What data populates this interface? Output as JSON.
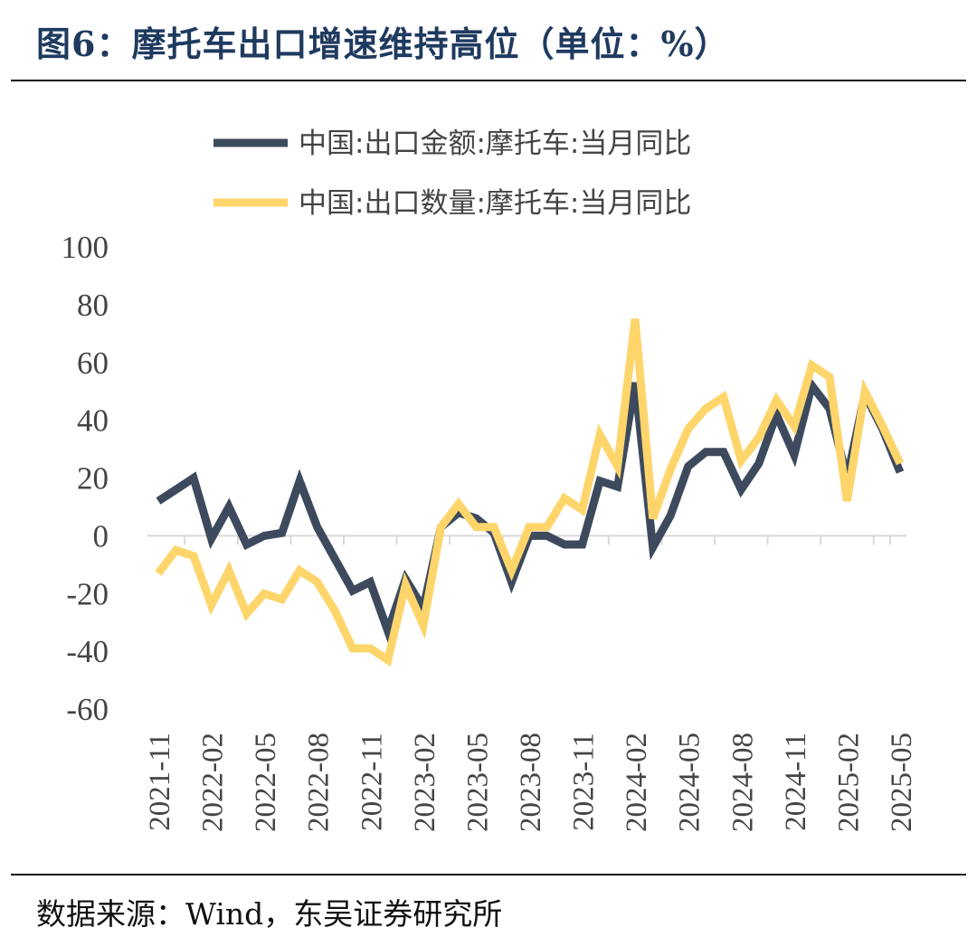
{
  "header": {
    "title": "图6：摩托车出口增速维持高位（单位：%）"
  },
  "footer": {
    "source": "数据来源：Wind，东吴证券研究所"
  },
  "chart_data": {
    "type": "line",
    "title": "摩托车出口增速维持高位（单位：%）",
    "ylim": [
      -60,
      100
    ],
    "yticks": [
      100,
      80,
      60,
      40,
      20,
      0,
      -20,
      -40,
      -60
    ],
    "xtick_labels": [
      "2021-11",
      "2022-02",
      "2022-05",
      "2022-08",
      "2022-11",
      "2023-02",
      "2023-05",
      "2023-08",
      "2023-11",
      "2024-02",
      "2024-05",
      "2024-08",
      "2024-11",
      "2025-02",
      "2025-05"
    ],
    "x": [
      "2021-11",
      "2021-12",
      "2022-01",
      "2022-02",
      "2022-03",
      "2022-04",
      "2022-05",
      "2022-06",
      "2022-07",
      "2022-08",
      "2022-09",
      "2022-10",
      "2022-11",
      "2022-12",
      "2023-01",
      "2023-02",
      "2023-03",
      "2023-04",
      "2023-05",
      "2023-06",
      "2023-07",
      "2023-08",
      "2023-09",
      "2023-10",
      "2023-11",
      "2023-12",
      "2024-01",
      "2024-02",
      "2024-03",
      "2024-04",
      "2024-05",
      "2024-06",
      "2024-07",
      "2024-08",
      "2024-09",
      "2024-10",
      "2024-11",
      "2024-12",
      "2025-01",
      "2025-02",
      "2025-03",
      "2025-04",
      "2025-05"
    ],
    "series": [
      {
        "name": "中国:出口金额:摩托车:当月同比",
        "color": "#3d4a5e",
        "values": [
          12,
          16,
          20,
          -1,
          10,
          -3,
          0,
          1,
          19,
          3,
          -8,
          -19,
          -16,
          -33,
          -15,
          -25,
          3,
          8,
          6,
          1,
          -16,
          0,
          0,
          -3,
          -3,
          19,
          17,
          53,
          -4,
          7,
          24,
          29,
          29,
          16,
          25,
          42,
          28,
          52,
          44,
          20,
          49,
          37,
          22
        ]
      },
      {
        "name": "中国:出口数量:摩托车:当月同比",
        "color": "#fdd56b",
        "values": [
          -13,
          -5,
          -7,
          -24,
          -12,
          -27,
          -20,
          -22,
          -12,
          -16,
          -26,
          -39,
          -39,
          -43,
          -17,
          -31,
          3,
          11,
          3,
          3,
          -12,
          3,
          3,
          13,
          9,
          35,
          24,
          75,
          6,
          23,
          37,
          44,
          48,
          26,
          34,
          47,
          38,
          59,
          55,
          12,
          50,
          38,
          25
        ]
      }
    ]
  }
}
